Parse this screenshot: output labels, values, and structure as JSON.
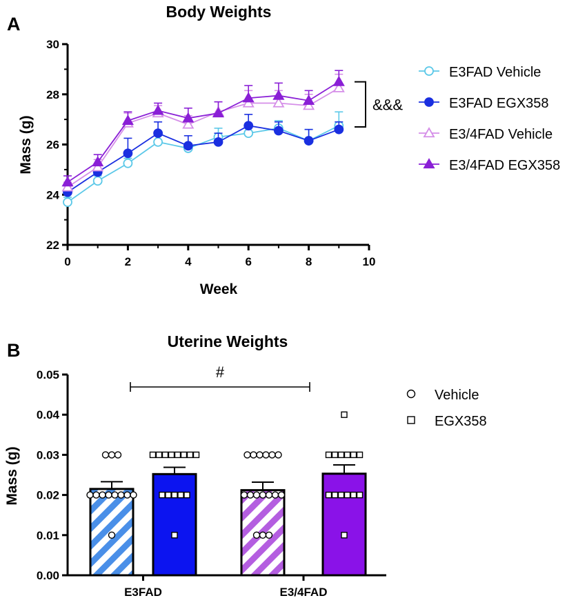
{
  "panels": {
    "a": "A",
    "b": "B"
  },
  "chart_data": [
    {
      "type": "line",
      "title": "Body Weights",
      "xlabel": "Week",
      "ylabel": "Mass (g)",
      "xlim": [
        0,
        10
      ],
      "ylim": [
        22,
        30
      ],
      "xticks": [
        0,
        2,
        4,
        6,
        8,
        10
      ],
      "yticks": [
        22,
        24,
        26,
        28,
        30
      ],
      "x": [
        0,
        1,
        2,
        3,
        4,
        5,
        6,
        7,
        8,
        9
      ],
      "series": [
        {
          "name": "E3FAD Vehicle",
          "marker": "circle-open",
          "color": "#5bc8e8",
          "values": [
            23.7,
            24.55,
            25.25,
            26.1,
            25.85,
            26.3,
            26.45,
            26.65,
            26.15,
            26.75
          ],
          "errors": [
            0.2,
            0.2,
            0.2,
            0.25,
            0.2,
            0.35,
            0.3,
            0.3,
            0.45,
            0.55
          ]
        },
        {
          "name": "E3FAD EGX358",
          "marker": "circle-filled",
          "color": "#1a2fe0",
          "values": [
            24.1,
            24.9,
            25.65,
            26.45,
            25.95,
            26.1,
            26.75,
            26.55,
            26.15,
            26.6
          ],
          "errors": [
            0.25,
            0.3,
            0.6,
            0.45,
            0.4,
            0.35,
            0.45,
            0.35,
            0.45,
            0.3
          ]
        },
        {
          "name": "E3/4FAD Vehicle",
          "marker": "triangle-open",
          "color": "#d58ee8",
          "values": [
            24.3,
            25.1,
            26.85,
            27.25,
            26.8,
            27.3,
            27.65,
            27.65,
            27.55,
            28.25
          ],
          "errors": [
            0.2,
            0.3,
            0.4,
            0.3,
            0.35,
            0.4,
            0.5,
            0.5,
            0.45,
            0.55
          ]
        },
        {
          "name": "E3/4FAD EGX358",
          "marker": "triangle-filled",
          "color": "#8a1fd6",
          "values": [
            24.5,
            25.3,
            26.95,
            27.35,
            27.05,
            27.25,
            27.85,
            27.95,
            27.75,
            28.5
          ],
          "errors": [
            0.25,
            0.3,
            0.35,
            0.3,
            0.4,
            0.45,
            0.5,
            0.5,
            0.4,
            0.45
          ]
        }
      ],
      "annotations": [
        {
          "text": "&&&",
          "between": "E3FAD groups and E3/4FAD groups",
          "range_y": [
            26.7,
            28.5
          ]
        }
      ],
      "legend": "right"
    },
    {
      "type": "bar",
      "title": "Uterine Weights",
      "xlabel": "",
      "ylabel": "Mass  (g)",
      "ylim": [
        0,
        0.05
      ],
      "yticks": [
        "0.00",
        "0.01",
        "0.02",
        "0.03",
        "0.04",
        "0.05"
      ],
      "categories": [
        "E3FAD",
        "E3/4FAD"
      ],
      "series": [
        {
          "name": "Vehicle",
          "marker": "circle-open"
        },
        {
          "name": "EGX358",
          "marker": "square-open"
        }
      ],
      "bars": [
        {
          "group": "E3FAD",
          "treatment": "Vehicle",
          "value": 0.0215,
          "error": 0.0018,
          "fill": "hatched",
          "color": "#4a8fe8",
          "points": [
            0.03,
            0.03,
            0.03,
            0.02,
            0.02,
            0.02,
            0.02,
            0.02,
            0.02,
            0.02,
            0.02,
            0.01
          ]
        },
        {
          "group": "E3FAD",
          "treatment": "EGX358",
          "value": 0.0252,
          "error": 0.0017,
          "fill": "solid",
          "color": "#0c14f0",
          "points": [
            0.03,
            0.03,
            0.03,
            0.03,
            0.03,
            0.03,
            0.03,
            0.03,
            0.02,
            0.02,
            0.02,
            0.02,
            0.02,
            0.01
          ]
        },
        {
          "group": "E3/4FAD",
          "treatment": "Vehicle",
          "value": 0.0212,
          "error": 0.002,
          "fill": "hatched",
          "color": "#b45ee0",
          "points": [
            0.03,
            0.03,
            0.03,
            0.03,
            0.03,
            0.03,
            0.02,
            0.02,
            0.02,
            0.02,
            0.02,
            0.02,
            0.02,
            0.01,
            0.01,
            0.01
          ]
        },
        {
          "group": "E3/4FAD",
          "treatment": "EGX358",
          "value": 0.0253,
          "error": 0.0022,
          "fill": "solid",
          "color": "#8a12e8",
          "points": [
            0.04,
            0.03,
            0.03,
            0.03,
            0.03,
            0.03,
            0.03,
            0.02,
            0.02,
            0.02,
            0.02,
            0.02,
            0.02,
            0.01
          ]
        }
      ],
      "annotations": [
        {
          "text": "#",
          "between": [
            "E3FAD",
            "E3/4FAD"
          ]
        }
      ],
      "legend": "right"
    }
  ]
}
